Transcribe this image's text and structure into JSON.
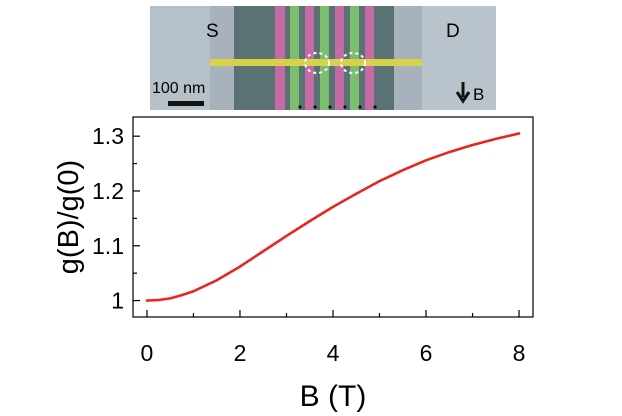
{
  "inset": {
    "source_label": "S",
    "drain_label": "D",
    "scale_label": "100 nm",
    "field_label": "B"
  },
  "chart_data": {
    "type": "line",
    "xlabel": "B (T)",
    "ylabel": "g(B)/g(0)",
    "xlim": [
      -0.3,
      8.3
    ],
    "ylim": [
      0.97,
      1.335
    ],
    "xticks": [
      0,
      2,
      4,
      6,
      8
    ],
    "xtick_labels": [
      "0",
      "2",
      "4",
      "6",
      "8"
    ],
    "yticks": [
      1.0,
      1.1,
      1.2,
      1.3
    ],
    "ytick_labels": [
      "1",
      "1.1",
      "1.2",
      "1.3"
    ],
    "grid": false,
    "series": [
      {
        "color": "#e8261d",
        "x": [
          0,
          0.25,
          0.5,
          0.75,
          1,
          1.5,
          2,
          2.5,
          3,
          3.5,
          4,
          4.5,
          5,
          5.5,
          6,
          6.5,
          7,
          7.5,
          8
        ],
        "y": [
          1.0,
          1.001,
          1.004,
          1.01,
          1.017,
          1.037,
          1.062,
          1.09,
          1.118,
          1.145,
          1.171,
          1.195,
          1.218,
          1.238,
          1.256,
          1.271,
          1.284,
          1.295,
          1.305
        ]
      }
    ]
  }
}
